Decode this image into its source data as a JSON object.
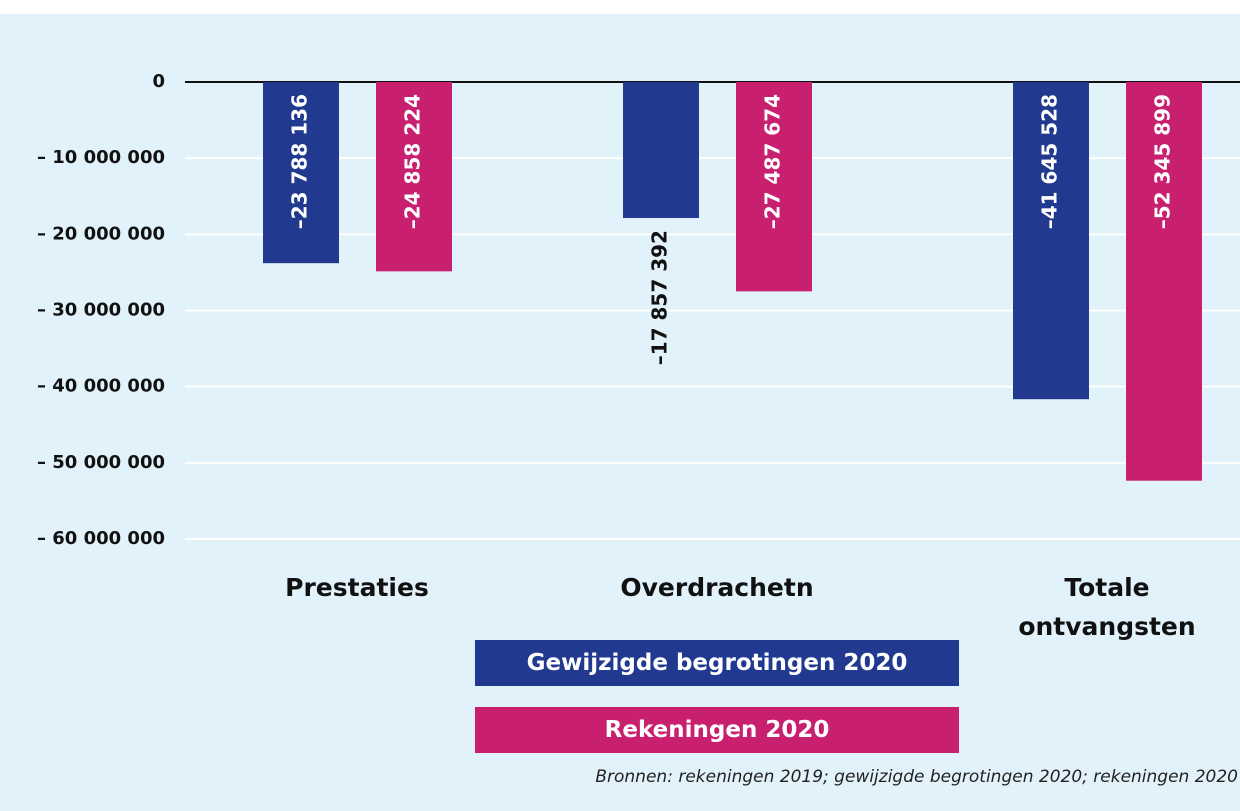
{
  "chart_data": {
    "type": "bar",
    "categories": [
      "Prestaties",
      "Overdrachetn",
      "Totale ontvangsten"
    ],
    "series": [
      {
        "name": "Gewijzigde begrotingen 2020",
        "color": "#213a8f",
        "values": [
          -23788136,
          -17857392,
          -41645528
        ],
        "value_labels": [
          "–23 788 136",
          "–17 857 392",
          "–41 645 528"
        ]
      },
      {
        "name": "Rekeningen 2020",
        "color": "#c8206f",
        "values": [
          -24858224,
          -27487674,
          -52345899
        ],
        "value_labels": [
          "–24 858 224",
          "–27 487 674",
          "–52 345 899"
        ]
      }
    ],
    "ylim": [
      -60000000,
      0
    ],
    "yticks": [
      0,
      {
        "value": -10000000,
        "label": "– 10 000 000"
      },
      {
        "value": -20000000,
        "label": "– 20 000 000"
      },
      {
        "value": -30000000,
        "label": "– 30 000 000"
      },
      {
        "value": -40000000,
        "label": "– 40 000 000"
      },
      {
        "value": -50000000,
        "label": "– 50 000 000"
      },
      {
        "value": -60000000,
        "label": "– 60 000 000"
      }
    ],
    "grid": true,
    "source": "Bronnen: rekeningen 2019; gewijzigde begrotingen 2020; rekeningen 2020"
  }
}
